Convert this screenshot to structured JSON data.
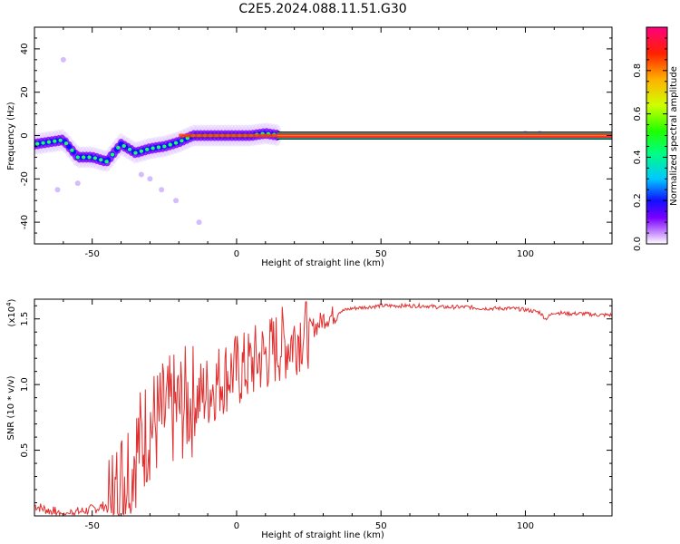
{
  "title": "C2E5.2024.088.11.51.G30",
  "chart_data": [
    {
      "type": "heatmap",
      "name": "spectrogram",
      "xlabel": "Height of straight line (km)",
      "ylabel": "Frequency (Hz)",
      "xlim": [
        -70,
        130
      ],
      "ylim": [
        -50,
        50
      ],
      "xticks": [
        -50,
        0,
        50,
        100
      ],
      "yticks": [
        40,
        20,
        0,
        -20,
        -40
      ],
      "colorbar": {
        "label": "Normalized spectral amplitude",
        "range": [
          0,
          1
        ],
        "ticks": [
          0.0,
          0.2,
          0.4,
          0.6,
          0.8
        ],
        "colors": [
          "#ffffff",
          "#c890ff",
          "#7a00ff",
          "#1010ff",
          "#00c8ff",
          "#00ff80",
          "#20ff00",
          "#d0ff00",
          "#ffb000",
          "#ff2000",
          "#ff0080"
        ]
      },
      "ridge": {
        "x": [
          -70,
          -65,
          -60,
          -55,
          -50,
          -45,
          -40,
          -35,
          -30,
          -25,
          -20,
          -15,
          -10,
          -5,
          0,
          5,
          10,
          15,
          130
        ],
        "y": [
          -4,
          -3,
          -2,
          -10,
          -10,
          -12,
          -4,
          -8,
          -6,
          -5,
          -3,
          0,
          0,
          0,
          0,
          0,
          1,
          0,
          0
        ]
      },
      "scatter_points": [
        {
          "x": -55,
          "y": -22
        },
        {
          "x": -62,
          "y": -25
        },
        {
          "x": -33,
          "y": -18
        },
        {
          "x": -30,
          "y": -20
        },
        {
          "x": -26,
          "y": -25
        },
        {
          "x": -21,
          "y": -30
        },
        {
          "x": -13,
          "y": -40
        },
        {
          "x": -60,
          "y": 35
        },
        {
          "x": 100,
          "y": 1
        },
        {
          "x": 105,
          "y": 1
        }
      ]
    },
    {
      "type": "line",
      "name": "snr",
      "xlabel": "Height of straight line (km)",
      "ylabel": "SNR (10 * v/v)",
      "scale_label": "(x10",
      "scale_exp": "4",
      "scale_close": ")",
      "xlim": [
        -70,
        130
      ],
      "ylim": [
        0,
        1.65
      ],
      "xticks": [
        -50,
        0,
        50,
        100
      ],
      "yticks": [
        0.5,
        1.0,
        1.5
      ],
      "series_color": "#e03030",
      "x": [
        -70,
        -65,
        -60,
        -55,
        -50,
        -45,
        -42,
        -40,
        -38,
        -35,
        -32,
        -30,
        -28,
        -25,
        -22,
        -20,
        -18,
        -15,
        -12,
        -10,
        -8,
        -5,
        -2,
        0,
        3,
        5,
        8,
        10,
        12,
        15,
        18,
        20,
        22,
        25,
        28,
        30,
        33,
        35,
        38,
        40,
        45,
        50,
        55,
        60,
        65,
        70,
        75,
        80,
        85,
        90,
        95,
        100,
        105,
        107,
        110,
        115,
        120,
        125,
        130
      ],
      "y": [
        0.08,
        0.04,
        0.02,
        0.03,
        0.05,
        0.08,
        0.12,
        0.25,
        0.35,
        0.5,
        0.6,
        0.7,
        0.7,
        0.75,
        0.8,
        0.82,
        0.85,
        0.88,
        0.92,
        0.95,
        1.0,
        1.05,
        1.1,
        1.1,
        1.12,
        1.15,
        1.2,
        1.22,
        1.25,
        1.3,
        1.32,
        1.35,
        1.4,
        1.42,
        1.45,
        1.5,
        1.52,
        1.55,
        1.57,
        1.58,
        1.59,
        1.6,
        1.6,
        1.6,
        1.6,
        1.59,
        1.59,
        1.59,
        1.58,
        1.58,
        1.58,
        1.57,
        1.55,
        1.5,
        1.55,
        1.54,
        1.54,
        1.53,
        1.53
      ]
    }
  ]
}
